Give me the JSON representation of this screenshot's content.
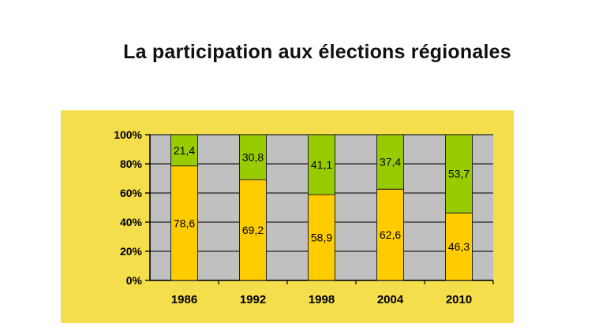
{
  "slide": {
    "title": "La participation aux élections régionales"
  },
  "colors": {
    "panel": "#f5de4b",
    "plot": "#c0c0c0",
    "participation": "#ffcc00",
    "abstention": "#99cc00",
    "axis": "#000000"
  },
  "chart_data": {
    "type": "bar",
    "stacked": true,
    "categories": [
      "1986",
      "1992",
      "1998",
      "2004",
      "2010"
    ],
    "series": [
      {
        "values": [
          78.6,
          69.2,
          58.9,
          62.6,
          46.3
        ],
        "labels": [
          "78,6",
          "69,2",
          "58,9",
          "62,6",
          "46,3"
        ]
      },
      {
        "values": [
          21.4,
          30.8,
          41.1,
          37.4,
          53.7
        ],
        "labels": [
          "21,4",
          "30,8",
          "41,1",
          "37,4",
          "53,7"
        ]
      }
    ],
    "yticks": [
      "0%",
      "20%",
      "40%",
      "60%",
      "80%",
      "100%"
    ],
    "ylim": [
      0,
      100
    ],
    "grid": true,
    "legend": "none"
  }
}
